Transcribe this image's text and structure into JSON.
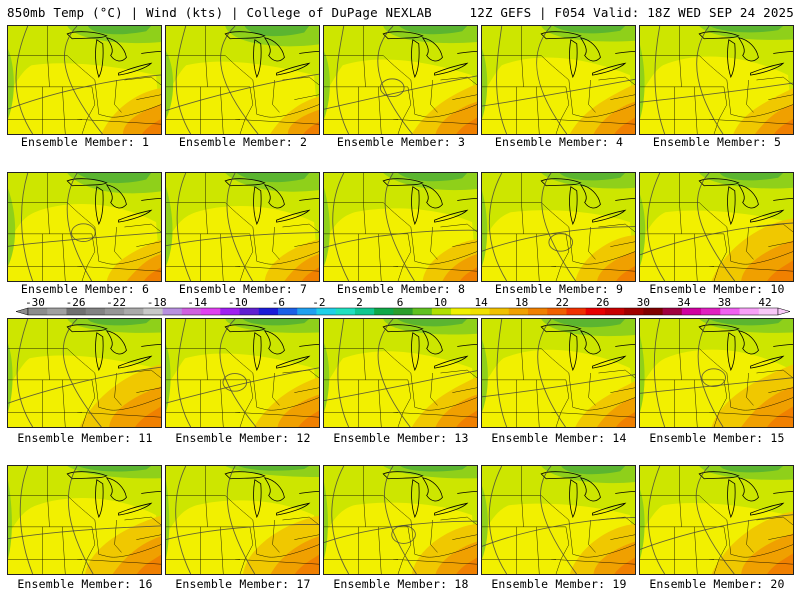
{
  "header": {
    "left": "850mb Temp (°C) | Wind (kts) | College of DuPage NEXLAB",
    "right": "12Z GEFS | F054 Valid: 18Z WED SEP 24 2025"
  },
  "label_prefix": "Ensemble Member: ",
  "members": [
    {
      "label": "Ensemble Member: 1",
      "warm": 0.55,
      "cool": 0.45
    },
    {
      "label": "Ensemble Member: 2",
      "warm": 0.45,
      "cool": 0.55
    },
    {
      "label": "Ensemble Member: 3",
      "warm": 0.6,
      "cool": 0.45
    },
    {
      "label": "Ensemble Member: 4",
      "warm": 0.6,
      "cool": 0.4
    },
    {
      "label": "Ensemble Member: 5",
      "warm": 0.55,
      "cool": 0.35
    },
    {
      "label": "Ensemble Member: 6",
      "warm": 0.5,
      "cool": 0.55
    },
    {
      "label": "Ensemble Member: 7",
      "warm": 0.5,
      "cool": 0.5
    },
    {
      "label": "Ensemble Member: 8",
      "warm": 0.5,
      "cool": 0.45
    },
    {
      "label": "Ensemble Member: 9",
      "warm": 0.55,
      "cool": 0.4
    },
    {
      "label": "Ensemble Member: 10",
      "warm": 0.75,
      "cool": 0.4
    },
    {
      "label": "Ensemble Member: 11",
      "warm": 0.75,
      "cool": 0.35
    },
    {
      "label": "Ensemble Member: 12",
      "warm": 0.6,
      "cool": 0.35
    },
    {
      "label": "Ensemble Member: 13",
      "warm": 0.6,
      "cool": 0.4
    },
    {
      "label": "Ensemble Member: 14",
      "warm": 0.55,
      "cool": 0.45
    },
    {
      "label": "Ensemble Member: 15",
      "warm": 0.75,
      "cool": 0.35
    },
    {
      "label": "Ensemble Member: 16",
      "warm": 0.7,
      "cool": 0.3
    },
    {
      "label": "Ensemble Member: 17",
      "warm": 0.7,
      "cool": 0.25
    },
    {
      "label": "Ensemble Member: 18",
      "warm": 0.6,
      "cool": 0.3
    },
    {
      "label": "Ensemble Member: 19",
      "warm": 0.6,
      "cool": 0.45
    },
    {
      "label": "Ensemble Member: 20",
      "warm": 0.75,
      "cool": 0.35
    }
  ],
  "colorbar": {
    "labels": [
      "-30",
      "-26",
      "-22",
      "-18",
      "-14",
      "-10",
      "-6",
      "-2",
      "2",
      "6",
      "10",
      "14",
      "18",
      "22",
      "26",
      "30",
      "34",
      "38",
      "42"
    ],
    "colors": [
      "#8c8c8c",
      "#a0a0a0",
      "#707070",
      "#828282",
      "#969696",
      "#aaaaaa",
      "#c8c8c8",
      "#b890e0",
      "#d060e0",
      "#e040f0",
      "#a020f0",
      "#6020d0",
      "#1c1cd8",
      "#1c60e8",
      "#20a0f0",
      "#20d0e8",
      "#20e0c0",
      "#10c890",
      "#10a848",
      "#2c9e2c",
      "#60c020",
      "#b0e000",
      "#f0f000",
      "#f0e000",
      "#f0c000",
      "#f0a000",
      "#f08000",
      "#f06000",
      "#f03000",
      "#e80000",
      "#c80000",
      "#a00000",
      "#800000",
      "#a00040",
      "#d000a0",
      "#e020c0",
      "#f060f0",
      "#f8a0f8",
      "#f8c8f8"
    ],
    "palette": {
      "cool_green": "#5bb530",
      "mid_green": "#8fd01a",
      "yellow_green": "#cde600",
      "yellow": "#f2f000",
      "gold": "#f0c800",
      "orange": "#f0a000",
      "dark_orange": "#f08000"
    }
  }
}
